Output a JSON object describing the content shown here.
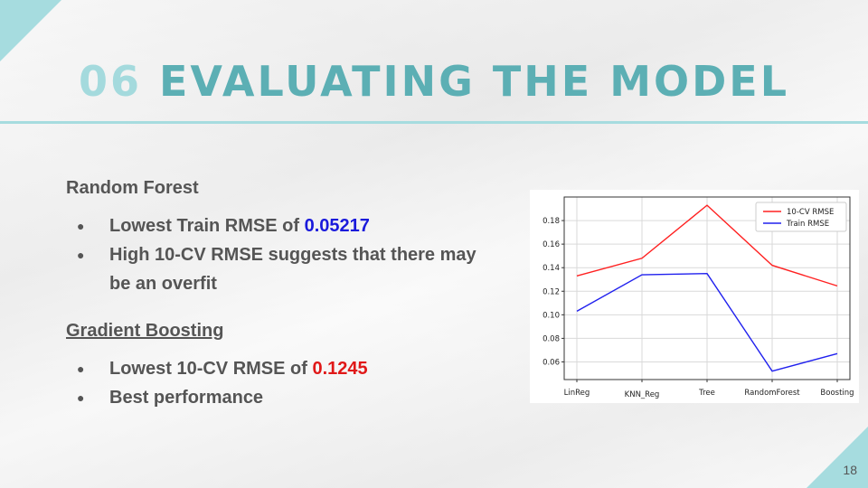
{
  "slide": {
    "title_number": "06",
    "title_text": "EVALUATING THE MODEL",
    "page_number": "18"
  },
  "content": {
    "rf_heading": "Random Forest",
    "rf_bullet1_text": "Lowest Train RMSE of ",
    "rf_bullet1_value": "0.05217",
    "rf_bullet2_text": "High 10-CV RMSE suggests that there may be an overfit",
    "gb_heading": "Gradient Boosting",
    "gb_bullet1_text": "Lowest 10-CV RMSE of ",
    "gb_bullet1_value": "0.1245",
    "gb_bullet2_text": "Best performance"
  },
  "colors": {
    "accent": "#5cafb4",
    "accent_light": "#a6dcdf",
    "value_blue": "#1a1adb",
    "value_red": "#e01818"
  },
  "chart_data": {
    "type": "line",
    "categories": [
      "LinReg",
      "KNN_Reg",
      "Tree",
      "RandomForest",
      "Boosting"
    ],
    "series": [
      {
        "name": "10-CV RMSE",
        "color": "#ff2020",
        "values": [
          0.133,
          0.148,
          0.193,
          0.142,
          0.1245
        ]
      },
      {
        "name": "Train RMSE",
        "color": "#2020ee",
        "values": [
          0.103,
          0.134,
          0.135,
          0.05217,
          0.067
        ]
      }
    ],
    "yticks": [
      "0.06",
      "0.08",
      "0.10",
      "0.12",
      "0.14",
      "0.16",
      "0.18"
    ],
    "ylim": [
      0.045,
      0.2
    ],
    "grid": true,
    "legend": "top-right"
  }
}
